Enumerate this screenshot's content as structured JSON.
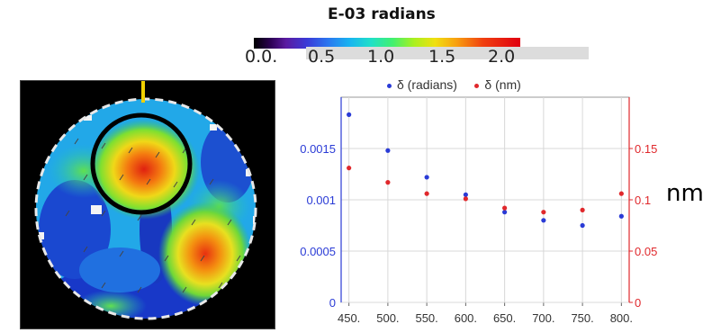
{
  "colorbar": {
    "title": "E-03 radians",
    "tick_labels": [
      "0.0.",
      "0.5",
      "1.0",
      "1.5",
      "2.0"
    ]
  },
  "right_axis_unit": "nm",
  "chart_data": {
    "type": "scatter",
    "x": [
      450,
      500,
      550,
      600,
      650,
      700,
      750,
      800
    ],
    "x_tick_labels": [
      "450.",
      "500.",
      "550.",
      "600.",
      "650.",
      "700.",
      "750.",
      "800."
    ],
    "xlim": [
      440,
      810
    ],
    "series": [
      {
        "name": "δ (radians)",
        "axis": "left",
        "color": "#2a3bd6",
        "values": [
          0.00183,
          0.00148,
          0.00122,
          0.00105,
          0.00088,
          0.0008,
          0.00075,
          0.00084
        ]
      },
      {
        "name": "δ (nm)",
        "axis": "right",
        "color": "#e0282c",
        "values": [
          0.131,
          0.117,
          0.106,
          0.101,
          0.092,
          0.088,
          0.09,
          0.106
        ]
      }
    ],
    "y_left": {
      "lim": [
        0,
        0.002
      ],
      "ticks": [
        0,
        0.0005,
        0.001,
        0.0015
      ],
      "tick_labels": [
        "0",
        "0.0005",
        "0.001",
        "0.0015"
      ],
      "color": "#2a3bd6"
    },
    "y_right": {
      "lim": [
        0,
        0.2
      ],
      "ticks": [
        0,
        0.05,
        0.1,
        0.15
      ],
      "tick_labels": [
        "0",
        "0.05",
        "0.1",
        "0.15"
      ],
      "color": "#e0282c"
    },
    "grid": true,
    "legend_position": "top"
  }
}
